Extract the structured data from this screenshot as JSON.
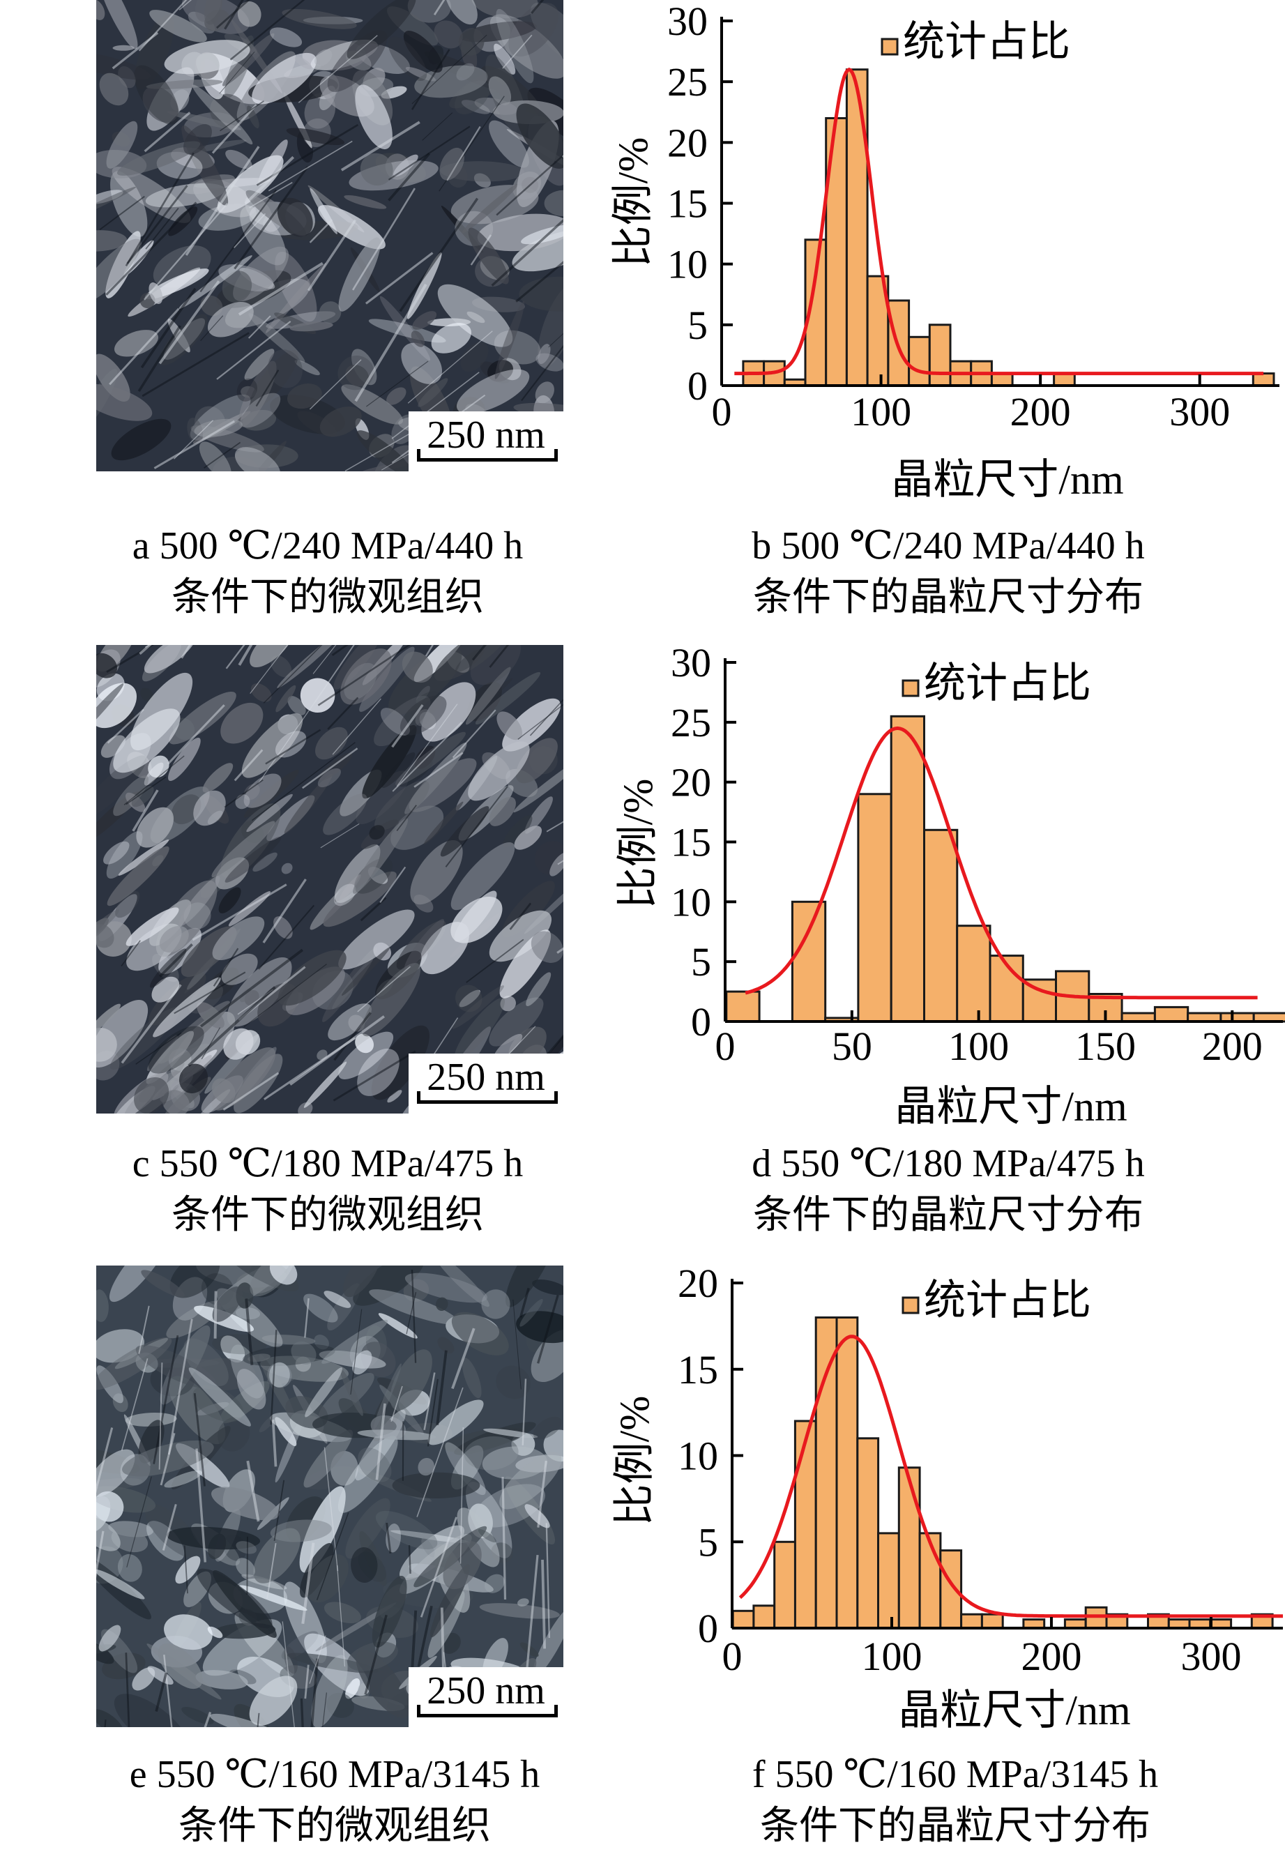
{
  "panels": [
    {
      "id": "a",
      "scale_label": "250 nm",
      "caption_line1": "a  500 ℃/240 MPa/440 h",
      "caption_line2": "条件下的微观组织"
    },
    {
      "id": "c",
      "scale_label": "250 nm",
      "caption_line1": "c  550 ℃/180 MPa/475 h",
      "caption_line2": "条件下的微观组织"
    },
    {
      "id": "e",
      "scale_label": "250 nm",
      "caption_line1": "e  550 ℃/160 MPa/3145 h",
      "caption_line2": "条件下的微观组织"
    }
  ],
  "chart_captions": [
    {
      "id": "b",
      "line1": "b  500 ℃/240 MPa/440 h",
      "line2": "条件下的晶粒尺寸分布"
    },
    {
      "id": "d",
      "line1": "d  550 ℃/180 MPa/475 h",
      "line2": "条件下的晶粒尺寸分布"
    },
    {
      "id": "f",
      "line1": "f  550 ℃/160 MPa/3145 h",
      "line2": "条件下的晶粒尺寸分布"
    }
  ],
  "colors": {
    "bar_fill": "#f5b06a",
    "bar_stroke": "#1a1a1a",
    "fit_line": "#e8191e"
  },
  "chart_data": [
    {
      "type": "bar",
      "xlabel": "晶粒尺寸/nm",
      "ylabel": "比例/%",
      "legend": "统计占比",
      "legend_position": "top-right",
      "xlim": [
        0,
        350
      ],
      "ylim": [
        0,
        30
      ],
      "xticks": [
        0,
        100,
        200,
        300
      ],
      "yticks": [
        0,
        5,
        10,
        15,
        20,
        25,
        30
      ],
      "bin_width": 13,
      "bins": [
        {
          "x": 20,
          "y": 2
        },
        {
          "x": 33,
          "y": 2
        },
        {
          "x": 46,
          "y": 0.5
        },
        {
          "x": 59,
          "y": 12
        },
        {
          "x": 72,
          "y": 22
        },
        {
          "x": 85,
          "y": 26
        },
        {
          "x": 98,
          "y": 9
        },
        {
          "x": 111,
          "y": 7
        },
        {
          "x": 124,
          "y": 4
        },
        {
          "x": 137,
          "y": 5
        },
        {
          "x": 150,
          "y": 2
        },
        {
          "x": 163,
          "y": 2
        },
        {
          "x": 176,
          "y": 1
        },
        {
          "x": 215,
          "y": 1
        },
        {
          "x": 340,
          "y": 1
        }
      ],
      "fit": {
        "baseline": 1.0,
        "amplitude": 25,
        "mean": 80,
        "sd": 14,
        "x_range": [
          8,
          340
        ]
      }
    },
    {
      "type": "bar",
      "xlabel": "晶粒尺寸/nm",
      "ylabel": "比例/%",
      "legend": "统计占比",
      "legend_position": "top-right",
      "xlim": [
        0,
        220
      ],
      "ylim": [
        0,
        30
      ],
      "xticks": [
        0,
        50,
        100,
        150,
        200
      ],
      "yticks": [
        0,
        5,
        10,
        15,
        20,
        25,
        30
      ],
      "bin_width": 13,
      "bins": [
        {
          "x": 7,
          "y": 2.5
        },
        {
          "x": 33,
          "y": 10
        },
        {
          "x": 46,
          "y": 0.3
        },
        {
          "x": 59,
          "y": 19
        },
        {
          "x": 72,
          "y": 25.5
        },
        {
          "x": 85,
          "y": 16
        },
        {
          "x": 98,
          "y": 8
        },
        {
          "x": 111,
          "y": 5.5
        },
        {
          "x": 124,
          "y": 3.5
        },
        {
          "x": 137,
          "y": 4.2
        },
        {
          "x": 150,
          "y": 2.3
        },
        {
          "x": 163,
          "y": 0.7
        },
        {
          "x": 176,
          "y": 1.2
        },
        {
          "x": 189,
          "y": 0.7
        },
        {
          "x": 202,
          "y": 0.7
        },
        {
          "x": 215,
          "y": 0.7
        }
      ],
      "fit": {
        "baseline": 2.0,
        "amplitude": 22.5,
        "mean": 68,
        "sd": 21,
        "x_range": [
          8,
          210
        ]
      }
    },
    {
      "type": "bar",
      "xlabel": "晶粒尺寸/nm",
      "ylabel": "比例/%",
      "legend": "统计占比",
      "legend_position": "top-right",
      "xlim": [
        0,
        345
      ],
      "ylim": [
        0,
        20
      ],
      "xticks": [
        0,
        100,
        200,
        300
      ],
      "yticks": [
        0,
        5,
        10,
        15,
        20
      ],
      "bin_width": 13,
      "bins": [
        {
          "x": 7,
          "y": 1
        },
        {
          "x": 20,
          "y": 1.3
        },
        {
          "x": 33,
          "y": 5
        },
        {
          "x": 46,
          "y": 12
        },
        {
          "x": 59,
          "y": 18
        },
        {
          "x": 72,
          "y": 18
        },
        {
          "x": 85,
          "y": 11
        },
        {
          "x": 98,
          "y": 5.5
        },
        {
          "x": 111,
          "y": 9.3
        },
        {
          "x": 124,
          "y": 5.5
        },
        {
          "x": 137,
          "y": 4.5
        },
        {
          "x": 150,
          "y": 0.8
        },
        {
          "x": 163,
          "y": 0.8
        },
        {
          "x": 189,
          "y": 0.5
        },
        {
          "x": 215,
          "y": 0.5
        },
        {
          "x": 228,
          "y": 1.2
        },
        {
          "x": 241,
          "y": 0.8
        },
        {
          "x": 267,
          "y": 0.8
        },
        {
          "x": 280,
          "y": 0.5
        },
        {
          "x": 293,
          "y": 0.5
        },
        {
          "x": 306,
          "y": 0.5
        },
        {
          "x": 332,
          "y": 0.8
        }
      ],
      "fit": {
        "baseline": 0.7,
        "amplitude": 16.2,
        "mean": 75,
        "sd": 30,
        "x_range": [
          5,
          345
        ]
      }
    }
  ]
}
